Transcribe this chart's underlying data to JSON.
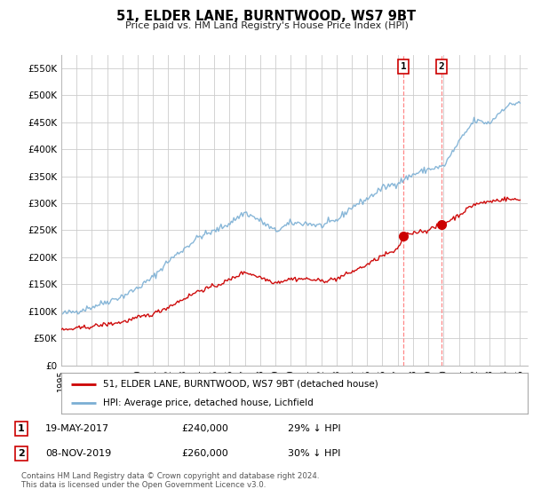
{
  "title": "51, ELDER LANE, BURNTWOOD, WS7 9BT",
  "subtitle": "Price paid vs. HM Land Registry's House Price Index (HPI)",
  "ylabel_ticks": [
    "£0",
    "£50K",
    "£100K",
    "£150K",
    "£200K",
    "£250K",
    "£300K",
    "£350K",
    "£400K",
    "£450K",
    "£500K",
    "£550K"
  ],
  "ytick_values": [
    0,
    50000,
    100000,
    150000,
    200000,
    250000,
    300000,
    350000,
    400000,
    450000,
    500000,
    550000
  ],
  "ylim": [
    0,
    575000
  ],
  "xlim_start": 1995.0,
  "xlim_end": 2025.5,
  "x_tick_years": [
    1995,
    1996,
    1997,
    1998,
    1999,
    2000,
    2001,
    2002,
    2003,
    2004,
    2005,
    2006,
    2007,
    2008,
    2009,
    2010,
    2011,
    2012,
    2013,
    2014,
    2015,
    2016,
    2017,
    2018,
    2019,
    2020,
    2021,
    2022,
    2023,
    2024,
    2025
  ],
  "transaction1_x": 2017.37,
  "transaction1_y": 240000,
  "transaction2_x": 2019.85,
  "transaction2_y": 260000,
  "red_line_color": "#cc0000",
  "blue_line_color": "#7bafd4",
  "marker_color": "#cc0000",
  "vline_color": "#ff8888",
  "background_color": "#ffffff",
  "grid_color": "#cccccc",
  "legend_label_red": "51, ELDER LANE, BURNTWOOD, WS7 9BT (detached house)",
  "legend_label_blue": "HPI: Average price, detached house, Lichfield",
  "table_row1": [
    "1",
    "19-MAY-2017",
    "£240,000",
    "29% ↓ HPI"
  ],
  "table_row2": [
    "2",
    "08-NOV-2019",
    "£260,000",
    "30% ↓ HPI"
  ],
  "footnote": "Contains HM Land Registry data © Crown copyright and database right 2024.\nThis data is licensed under the Open Government Licence v3.0.",
  "blue_keypoints": [
    [
      1995.0,
      95000
    ],
    [
      1996.0,
      100000
    ],
    [
      1997.0,
      108000
    ],
    [
      1998.0,
      118000
    ],
    [
      1999.0,
      128000
    ],
    [
      2000.0,
      143000
    ],
    [
      2001.0,
      163000
    ],
    [
      2002.0,
      193000
    ],
    [
      2003.0,
      215000
    ],
    [
      2004.0,
      238000
    ],
    [
      2005.0,
      248000
    ],
    [
      2006.0,
      263000
    ],
    [
      2007.0,
      283000
    ],
    [
      2008.0,
      268000
    ],
    [
      2009.0,
      248000
    ],
    [
      2010.0,
      263000
    ],
    [
      2011.0,
      263000
    ],
    [
      2012.0,
      258000
    ],
    [
      2013.0,
      268000
    ],
    [
      2014.0,
      293000
    ],
    [
      2015.0,
      308000
    ],
    [
      2016.0,
      328000
    ],
    [
      2017.0,
      338000
    ],
    [
      2018.0,
      353000
    ],
    [
      2019.0,
      363000
    ],
    [
      2020.0,
      368000
    ],
    [
      2021.0,
      413000
    ],
    [
      2022.0,
      453000
    ],
    [
      2023.0,
      448000
    ],
    [
      2024.0,
      478000
    ],
    [
      2025.0,
      488000
    ]
  ],
  "red_keypoints": [
    [
      1995.0,
      65000
    ],
    [
      1996.0,
      68000
    ],
    [
      1997.0,
      72000
    ],
    [
      1998.0,
      76000
    ],
    [
      1999.0,
      80000
    ],
    [
      2000.0,
      88000
    ],
    [
      2001.0,
      95000
    ],
    [
      2002.0,
      108000
    ],
    [
      2003.0,
      123000
    ],
    [
      2004.0,
      138000
    ],
    [
      2005.0,
      146000
    ],
    [
      2006.0,
      158000
    ],
    [
      2007.0,
      173000
    ],
    [
      2008.0,
      163000
    ],
    [
      2009.0,
      153000
    ],
    [
      2010.0,
      160000
    ],
    [
      2011.0,
      160000
    ],
    [
      2012.0,
      156000
    ],
    [
      2013.0,
      160000
    ],
    [
      2014.0,
      173000
    ],
    [
      2015.0,
      186000
    ],
    [
      2016.0,
      203000
    ],
    [
      2017.0,
      213000
    ],
    [
      2017.37,
      240000
    ],
    [
      2018.0,
      246000
    ],
    [
      2019.0,
      250000
    ],
    [
      2019.85,
      260000
    ],
    [
      2020.0,
      262000
    ],
    [
      2021.0,
      278000
    ],
    [
      2022.0,
      298000
    ],
    [
      2023.0,
      303000
    ],
    [
      2024.0,
      308000
    ],
    [
      2025.0,
      306000
    ]
  ]
}
